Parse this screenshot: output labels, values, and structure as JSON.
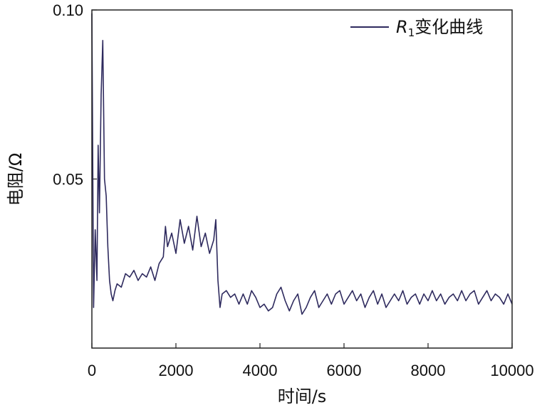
{
  "chart_data": {
    "type": "line",
    "xlabel": "时间/s",
    "ylabel": "电阻/Ω",
    "xlim": [
      0,
      10000
    ],
    "ylim": [
      0,
      0.1
    ],
    "x_ticks": [
      "0",
      "2000",
      "4000",
      "6000",
      "8000",
      "10000"
    ],
    "y_ticks": [
      "0.05",
      "0.10"
    ],
    "grid": false,
    "legend_position": "top-right",
    "line_color": "#2e2a5e",
    "series": [
      {
        "name": "R1变化曲线",
        "legend_main": "R",
        "legend_sub": "1",
        "legend_rest": "变化曲线",
        "x": [
          0,
          40,
          80,
          120,
          150,
          180,
          220,
          260,
          300,
          340,
          380,
          420,
          460,
          500,
          550,
          600,
          700,
          800,
          900,
          1000,
          1100,
          1200,
          1300,
          1400,
          1500,
          1600,
          1700,
          1750,
          1800,
          1900,
          2000,
          2100,
          2200,
          2300,
          2400,
          2500,
          2600,
          2700,
          2800,
          2900,
          2950,
          3000,
          3050,
          3100,
          3200,
          3300,
          3400,
          3500,
          3600,
          3700,
          3800,
          3900,
          4000,
          4100,
          4200,
          4300,
          4400,
          4500,
          4600,
          4700,
          4800,
          4900,
          5000,
          5100,
          5200,
          5300,
          5400,
          5500,
          5600,
          5700,
          5800,
          5900,
          6000,
          6100,
          6200,
          6300,
          6400,
          6500,
          6600,
          6700,
          6800,
          6900,
          7000,
          7100,
          7200,
          7300,
          7400,
          7500,
          7600,
          7700,
          7800,
          7900,
          8000,
          8100,
          8200,
          8300,
          8400,
          8500,
          8600,
          8700,
          8800,
          8900,
          9000,
          9100,
          9200,
          9300,
          9400,
          9500,
          9600,
          9700,
          9800,
          9900,
          10000
        ],
        "y": [
          0.099,
          0.012,
          0.035,
          0.02,
          0.06,
          0.04,
          0.075,
          0.091,
          0.05,
          0.045,
          0.03,
          0.02,
          0.016,
          0.014,
          0.017,
          0.019,
          0.018,
          0.022,
          0.021,
          0.023,
          0.02,
          0.022,
          0.021,
          0.024,
          0.02,
          0.025,
          0.027,
          0.036,
          0.03,
          0.034,
          0.028,
          0.038,
          0.031,
          0.036,
          0.029,
          0.039,
          0.03,
          0.034,
          0.028,
          0.032,
          0.038,
          0.02,
          0.012,
          0.016,
          0.017,
          0.015,
          0.016,
          0.013,
          0.016,
          0.013,
          0.017,
          0.015,
          0.012,
          0.013,
          0.011,
          0.012,
          0.016,
          0.018,
          0.014,
          0.011,
          0.014,
          0.016,
          0.01,
          0.012,
          0.015,
          0.017,
          0.012,
          0.014,
          0.016,
          0.013,
          0.016,
          0.017,
          0.013,
          0.015,
          0.017,
          0.014,
          0.016,
          0.012,
          0.015,
          0.017,
          0.013,
          0.016,
          0.012,
          0.014,
          0.016,
          0.014,
          0.017,
          0.013,
          0.015,
          0.016,
          0.013,
          0.016,
          0.014,
          0.017,
          0.014,
          0.016,
          0.013,
          0.015,
          0.016,
          0.014,
          0.017,
          0.014,
          0.016,
          0.017,
          0.013,
          0.015,
          0.017,
          0.014,
          0.016,
          0.015,
          0.013,
          0.016,
          0.013
        ]
      }
    ]
  }
}
